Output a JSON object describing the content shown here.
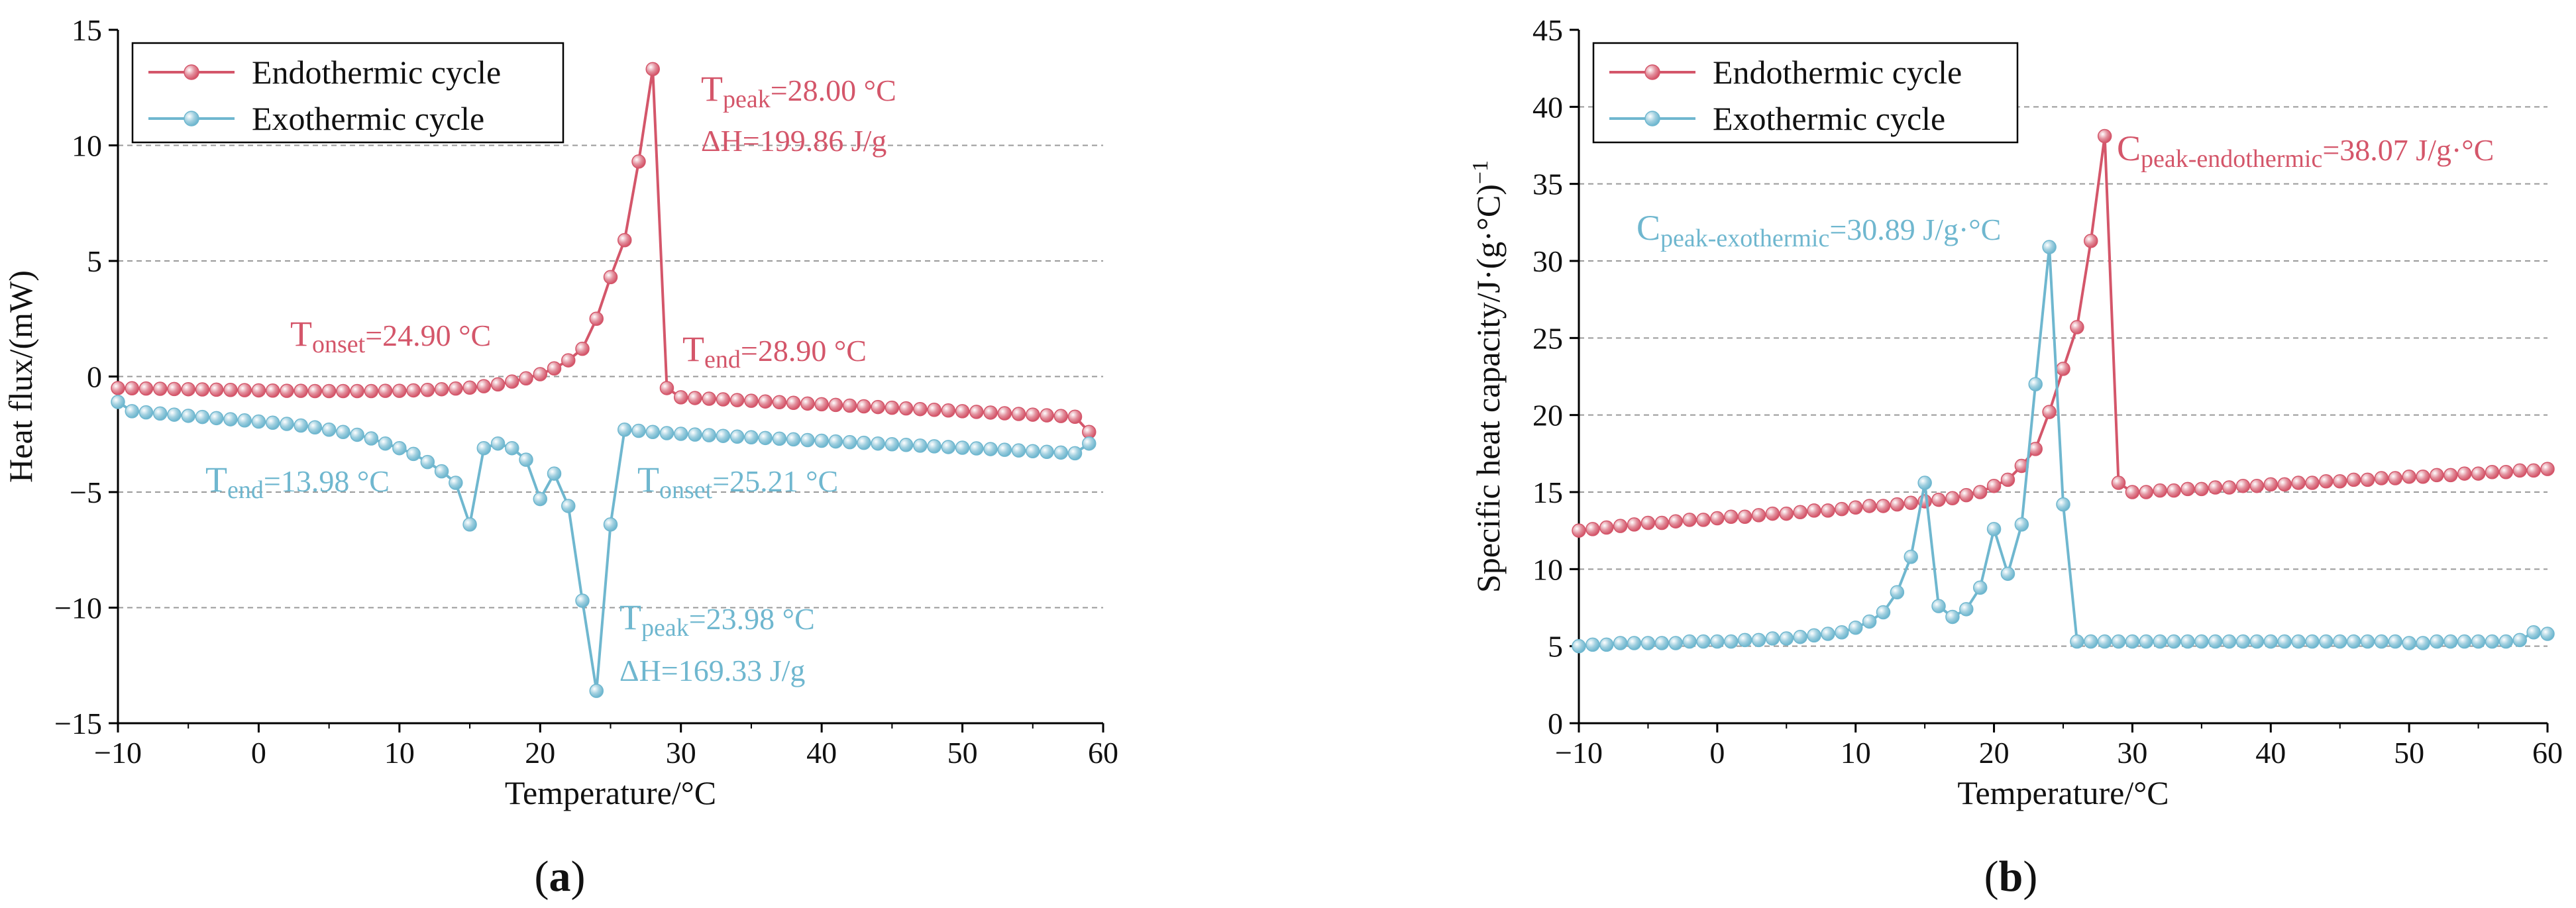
{
  "figure": {
    "panel_labels": [
      {
        "open": "(",
        "letter": "a",
        "close": ")"
      },
      {
        "open": "(",
        "letter": "b",
        "close": ")"
      }
    ]
  },
  "chart_data": [
    {
      "type": "line",
      "panel": "a",
      "xlabel": "Temperature/°C",
      "ylabel": "Heat flux/(mW)",
      "xlim": [
        -10,
        60
      ],
      "ylim": [
        -15,
        15
      ],
      "xticks": [
        -10,
        0,
        10,
        20,
        30,
        40,
        50,
        60
      ],
      "yticks": [
        -15,
        -10,
        -5,
        0,
        5,
        10,
        15
      ],
      "grid": "horizontal-dashed",
      "legend_position": "top-left",
      "series": [
        {
          "name": "Endothermic cycle",
          "color": "#d4566a",
          "x": [
            -10,
            -9,
            -8,
            -7,
            -6,
            -5,
            -4,
            -3,
            -2,
            -1,
            0,
            1,
            2,
            3,
            4,
            5,
            6,
            7,
            8,
            9,
            10,
            11,
            12,
            13,
            14,
            15,
            16,
            17,
            18,
            19,
            20,
            21,
            22,
            23,
            24,
            25,
            26,
            27,
            28,
            29,
            30,
            31,
            32,
            33,
            34,
            35,
            36,
            37,
            38,
            39,
            40,
            41,
            42,
            43,
            44,
            45,
            46,
            47,
            48,
            49,
            50,
            51,
            52,
            53,
            54,
            55,
            56,
            57,
            58,
            59
          ],
          "y": [
            -0.5,
            -0.51,
            -0.52,
            -0.53,
            -0.54,
            -0.55,
            -0.56,
            -0.57,
            -0.58,
            -0.59,
            -0.6,
            -0.61,
            -0.62,
            -0.62,
            -0.63,
            -0.63,
            -0.63,
            -0.63,
            -0.63,
            -0.62,
            -0.62,
            -0.6,
            -0.58,
            -0.55,
            -0.52,
            -0.48,
            -0.42,
            -0.34,
            -0.22,
            -0.08,
            0.1,
            0.35,
            0.7,
            1.2,
            2.5,
            4.3,
            5.9,
            9.3,
            13.3,
            -0.5,
            -0.9,
            -0.93,
            -0.96,
            -0.99,
            -1.02,
            -1.05,
            -1.08,
            -1.11,
            -1.14,
            -1.17,
            -1.2,
            -1.23,
            -1.26,
            -1.29,
            -1.32,
            -1.35,
            -1.38,
            -1.41,
            -1.44,
            -1.47,
            -1.5,
            -1.53,
            -1.56,
            -1.59,
            -1.62,
            -1.65,
            -1.68,
            -1.71,
            -1.74,
            -2.4
          ]
        },
        {
          "name": "Exothermic cycle",
          "color": "#6fb7cf",
          "x": [
            -10,
            -9,
            -8,
            -7,
            -6,
            -5,
            -4,
            -3,
            -2,
            -1,
            0,
            1,
            2,
            3,
            4,
            5,
            6,
            7,
            8,
            9,
            10,
            11,
            12,
            13,
            14,
            15,
            16,
            17,
            18,
            19,
            20,
            21,
            22,
            23,
            24,
            25,
            26,
            27,
            28,
            29,
            30,
            31,
            32,
            33,
            34,
            35,
            36,
            37,
            38,
            39,
            40,
            41,
            42,
            43,
            44,
            45,
            46,
            47,
            48,
            49,
            50,
            51,
            52,
            53,
            54,
            55,
            56,
            57,
            58,
            59
          ],
          "y": [
            -1.1,
            -1.5,
            -1.55,
            -1.6,
            -1.65,
            -1.7,
            -1.75,
            -1.8,
            -1.85,
            -1.9,
            -1.95,
            -2.0,
            -2.05,
            -2.12,
            -2.2,
            -2.3,
            -2.4,
            -2.52,
            -2.68,
            -2.9,
            -3.1,
            -3.35,
            -3.7,
            -4.1,
            -4.6,
            -6.4,
            -3.1,
            -2.9,
            -3.1,
            -3.6,
            -5.3,
            -4.2,
            -5.6,
            -9.7,
            -13.6,
            -6.4,
            -2.3,
            -2.35,
            -2.4,
            -2.45,
            -2.48,
            -2.51,
            -2.54,
            -2.57,
            -2.6,
            -2.63,
            -2.66,
            -2.69,
            -2.72,
            -2.75,
            -2.78,
            -2.81,
            -2.84,
            -2.87,
            -2.9,
            -2.93,
            -2.96,
            -2.99,
            -3.02,
            -3.05,
            -3.08,
            -3.11,
            -3.14,
            -3.17,
            -3.2,
            -3.23,
            -3.26,
            -3.29,
            -3.32,
            -2.9
          ]
        }
      ],
      "annotations": [
        {
          "id": "endo-peak",
          "prefix": "T",
          "sub": "peak",
          "suffix": "=28.00 °C",
          "color": "#d4566a"
        },
        {
          "id": "endo-dh",
          "text": "ΔH=199.86 J/g",
          "color": "#d4566a"
        },
        {
          "id": "endo-onset",
          "prefix": "T",
          "sub": "onset",
          "suffix": "=24.90 °C",
          "color": "#d4566a"
        },
        {
          "id": "endo-end",
          "prefix": "T",
          "sub": "end",
          "suffix": "=28.90 °C",
          "color": "#d4566a"
        },
        {
          "id": "exo-end",
          "prefix": "T",
          "sub": "end",
          "suffix": "=13.98 °C",
          "color": "#6fb7cf"
        },
        {
          "id": "exo-onset",
          "prefix": "T",
          "sub": "onset",
          "suffix": "=25.21 °C",
          "color": "#6fb7cf"
        },
        {
          "id": "exo-peak",
          "prefix": "T",
          "sub": "peak",
          "suffix": "=23.98 °C",
          "color": "#6fb7cf"
        },
        {
          "id": "exo-dh",
          "text": "ΔH=169.33 J/g",
          "color": "#6fb7cf"
        }
      ]
    },
    {
      "type": "line",
      "panel": "b",
      "xlabel": "Temperature/°C",
      "ylabel_prefix": "Specific heat capacity/J·(g·°C)",
      "ylabel_sup": "−1",
      "xlim": [
        -10,
        60
      ],
      "ylim": [
        0,
        45
      ],
      "xticks": [
        -10,
        0,
        10,
        20,
        30,
        40,
        50,
        60
      ],
      "yticks": [
        0,
        5,
        10,
        15,
        20,
        25,
        30,
        35,
        40,
        45
      ],
      "grid": "horizontal-dashed",
      "legend_position": "top-left",
      "series": [
        {
          "name": "Endothermic cycle",
          "color": "#d4566a",
          "x": [
            -10,
            -9,
            -8,
            -7,
            -6,
            -5,
            -4,
            -3,
            -2,
            -1,
            0,
            1,
            2,
            3,
            4,
            5,
            6,
            7,
            8,
            9,
            10,
            11,
            12,
            13,
            14,
            15,
            16,
            17,
            18,
            19,
            20,
            21,
            22,
            23,
            24,
            25,
            26,
            27,
            28,
            29,
            30,
            31,
            32,
            33,
            34,
            35,
            36,
            37,
            38,
            39,
            40,
            41,
            42,
            43,
            44,
            45,
            46,
            47,
            48,
            49,
            50,
            51,
            52,
            53,
            54,
            55,
            56,
            57,
            58,
            59,
            60
          ],
          "y": [
            12.5,
            12.6,
            12.7,
            12.8,
            12.9,
            13.0,
            13.0,
            13.1,
            13.2,
            13.2,
            13.3,
            13.4,
            13.4,
            13.5,
            13.6,
            13.6,
            13.7,
            13.8,
            13.8,
            13.9,
            14.0,
            14.1,
            14.1,
            14.2,
            14.3,
            14.4,
            14.5,
            14.6,
            14.8,
            15.0,
            15.4,
            15.8,
            16.7,
            17.8,
            20.2,
            23.0,
            25.7,
            31.3,
            38.1,
            15.6,
            15.0,
            15.0,
            15.1,
            15.1,
            15.2,
            15.2,
            15.3,
            15.3,
            15.4,
            15.4,
            15.5,
            15.5,
            15.6,
            15.6,
            15.7,
            15.7,
            15.8,
            15.8,
            15.9,
            15.9,
            16.0,
            16.0,
            16.1,
            16.1,
            16.2,
            16.2,
            16.3,
            16.3,
            16.4,
            16.4,
            16.5
          ]
        },
        {
          "name": "Exothermic cycle",
          "color": "#6fb7cf",
          "x": [
            -10,
            -9,
            -8,
            -7,
            -6,
            -5,
            -4,
            -3,
            -2,
            -1,
            0,
            1,
            2,
            3,
            4,
            5,
            6,
            7,
            8,
            9,
            10,
            11,
            12,
            13,
            14,
            15,
            16,
            17,
            18,
            19,
            20,
            21,
            22,
            23,
            24,
            25,
            26,
            27,
            28,
            29,
            30,
            31,
            32,
            33,
            34,
            35,
            36,
            37,
            38,
            39,
            40,
            41,
            42,
            43,
            44,
            45,
            46,
            47,
            48,
            49,
            50,
            51,
            52,
            53,
            54,
            55,
            56,
            57,
            58,
            59,
            60
          ],
          "y": [
            5.0,
            5.1,
            5.1,
            5.2,
            5.2,
            5.2,
            5.2,
            5.2,
            5.3,
            5.3,
            5.3,
            5.3,
            5.4,
            5.4,
            5.5,
            5.5,
            5.6,
            5.7,
            5.8,
            5.9,
            6.2,
            6.6,
            7.2,
            8.5,
            10.8,
            15.6,
            7.6,
            6.9,
            7.4,
            8.8,
            12.6,
            9.7,
            12.9,
            22.0,
            30.9,
            14.2,
            5.3,
            5.3,
            5.3,
            5.3,
            5.3,
            5.3,
            5.3,
            5.3,
            5.3,
            5.3,
            5.3,
            5.3,
            5.3,
            5.3,
            5.3,
            5.3,
            5.3,
            5.3,
            5.3,
            5.3,
            5.3,
            5.3,
            5.3,
            5.3,
            5.2,
            5.2,
            5.3,
            5.3,
            5.3,
            5.3,
            5.3,
            5.3,
            5.4,
            5.9,
            5.8
          ]
        }
      ],
      "annotations": [
        {
          "id": "endo-cpeak",
          "prefix": "C",
          "sub": "peak-endothermic",
          "suffix": "=38.07 J/g·°C",
          "color": "#d4566a"
        },
        {
          "id": "exo-cpeak",
          "prefix": "C",
          "sub": "peak-exothermic",
          "suffix": "=30.89 J/g·°C",
          "color": "#6fb7cf"
        }
      ]
    }
  ]
}
